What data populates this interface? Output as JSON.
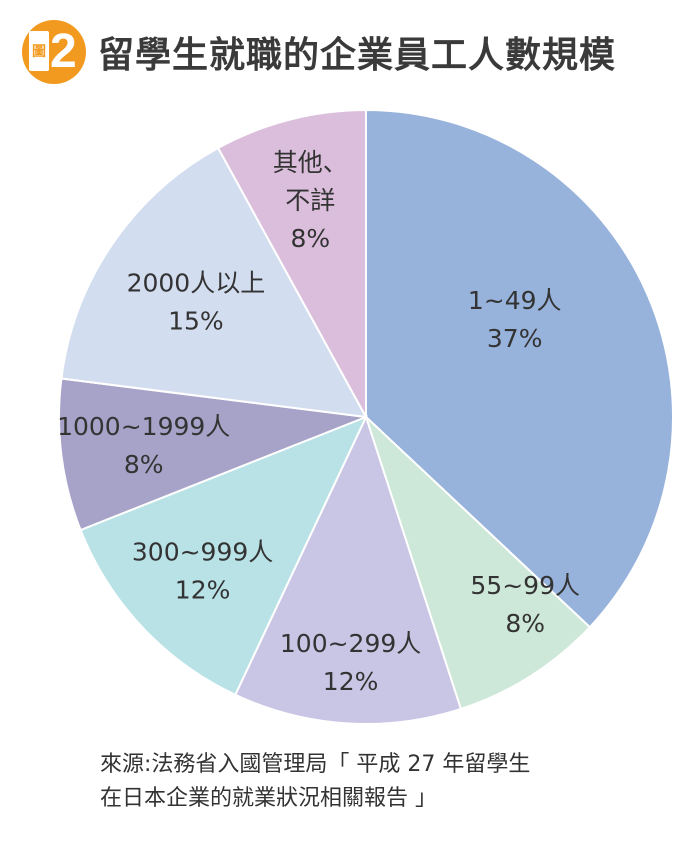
{
  "header": {
    "badge_char": "圖",
    "badge_number": "2",
    "title": "留學生就職的企業員工人數規模"
  },
  "chart_data": {
    "type": "pie",
    "title": "留學生就職的企業員工人數規模",
    "unit": "%",
    "slices": [
      {
        "label": "1~49人",
        "value": 37,
        "value_label": "37%",
        "color": "#97b3dc"
      },
      {
        "label": "55~99人",
        "value": 8,
        "value_label": "8%",
        "color": "#cde7d9"
      },
      {
        "label": "100~299人",
        "value": 12,
        "value_label": "12%",
        "color": "#c9c5e4"
      },
      {
        "label": "300~999人",
        "value": 12,
        "value_label": "12%",
        "color": "#b9e2e7"
      },
      {
        "label": "1000~1999人",
        "value": 8,
        "value_label": "8%",
        "color": "#a7a3c8"
      },
      {
        "label": "2000人以上",
        "value": 15,
        "value_label": "15%",
        "color": "#d3ddf0"
      },
      {
        "label": "其他、\n不詳",
        "value": 8,
        "value_label": "8%",
        "color": "#dbbedc"
      }
    ]
  },
  "source": {
    "line1": "來源:法務省入國管理局「 平成 27 年留學生",
    "line2": "在日本企業的就業狀況相關報告 」"
  }
}
